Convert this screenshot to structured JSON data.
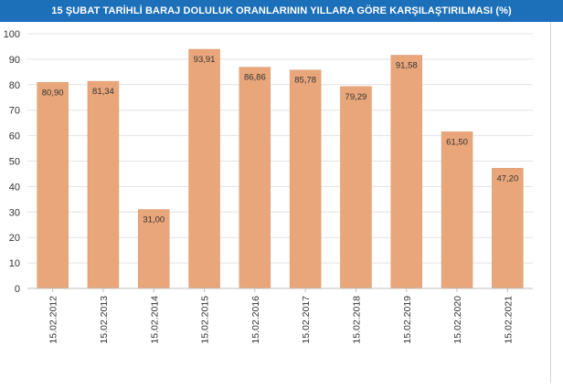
{
  "chart_data": {
    "type": "bar",
    "title": "15 ŞUBAT TARİHLİ BARAJ DOLULUK ORANLARININ YILLARA GÖRE KARŞILAŞTIRILMASI (%)",
    "categories": [
      "15.02.2012",
      "15.02.2013",
      "15.02.2014",
      "15.02.2015",
      "15.02.2016",
      "15.02.2017",
      "15.02.2018",
      "15.02.2019",
      "15.02.2020",
      "15.02.2021"
    ],
    "values": [
      80.9,
      81.34,
      31.0,
      93.91,
      86.86,
      85.78,
      79.29,
      91.58,
      61.5,
      47.2
    ],
    "data_labels": [
      "80,90",
      "81,34",
      "31,00",
      "93,91",
      "86,86",
      "85,78",
      "79,29",
      "91,58",
      "61,50",
      "47,20"
    ],
    "xlabel": "",
    "ylabel": "",
    "ylim": [
      0,
      100
    ],
    "yticks": [
      0,
      10,
      20,
      30,
      40,
      50,
      60,
      70,
      80,
      90,
      100
    ],
    "grid": true,
    "colors": {
      "bar": "#e9a67a",
      "bar_edge": "#d99a6f",
      "grid": "#e3e3e3",
      "axis": "#bfbfbf",
      "title_bg": "#1c6fb9",
      "title_text": "#ffffff",
      "label_text": "#333333"
    }
  }
}
